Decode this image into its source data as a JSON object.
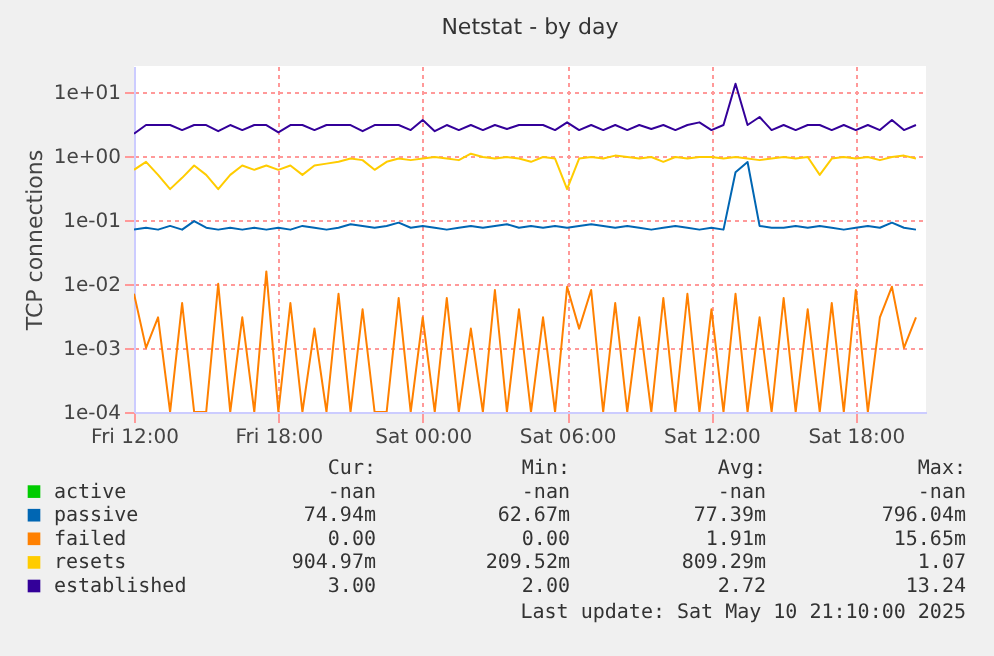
{
  "chart_data": {
    "type": "line",
    "title": "Netstat - by day",
    "ylabel": "TCP connections",
    "log": "y",
    "grid": true,
    "legend": "bottom",
    "xlim": [
      "2025-05-09T12:00",
      "2025-05-10T20:55"
    ],
    "xticks": [
      {
        "value": "2025-05-09T12:00",
        "label": "Fri 12:00"
      },
      {
        "value": "2025-05-09T18:00",
        "label": "Fri 18:00"
      },
      {
        "value": "2025-05-10T00:00",
        "label": "Sat 00:00"
      },
      {
        "value": "2025-05-10T06:00",
        "label": "Sat 06:00"
      },
      {
        "value": "2025-05-10T12:00",
        "label": "Sat 12:00"
      },
      {
        "value": "2025-05-10T18:00",
        "label": "Sat 18:00"
      }
    ],
    "ylim": [
      0.0001,
      25
    ],
    "yticks": [
      {
        "value": 0.0001,
        "label": "1e-04"
      },
      {
        "value": 0.001,
        "label": "1e-03"
      },
      {
        "value": 0.01,
        "label": "1e-02"
      },
      {
        "value": 0.1,
        "label": "1e-01"
      },
      {
        "value": 1,
        "label": "1e+00"
      },
      {
        "value": 10,
        "label": "1e+01"
      }
    ],
    "x": [
      "2025-05-09T12:00",
      "2025-05-09T12:30",
      "2025-05-09T13:00",
      "2025-05-09T13:30",
      "2025-05-09T14:00",
      "2025-05-09T14:30",
      "2025-05-09T15:00",
      "2025-05-09T15:30",
      "2025-05-09T16:00",
      "2025-05-09T16:30",
      "2025-05-09T17:00",
      "2025-05-09T17:30",
      "2025-05-09T18:00",
      "2025-05-09T18:30",
      "2025-05-09T19:00",
      "2025-05-09T19:30",
      "2025-05-09T20:00",
      "2025-05-09T20:30",
      "2025-05-09T21:00",
      "2025-05-09T21:30",
      "2025-05-09T22:00",
      "2025-05-09T22:30",
      "2025-05-09T23:00",
      "2025-05-09T23:30",
      "2025-05-10T00:00",
      "2025-05-10T00:30",
      "2025-05-10T01:00",
      "2025-05-10T01:30",
      "2025-05-10T02:00",
      "2025-05-10T02:30",
      "2025-05-10T03:00",
      "2025-05-10T03:30",
      "2025-05-10T04:00",
      "2025-05-10T04:30",
      "2025-05-10T05:00",
      "2025-05-10T05:30",
      "2025-05-10T06:00",
      "2025-05-10T06:30",
      "2025-05-10T07:00",
      "2025-05-10T07:30",
      "2025-05-10T08:00",
      "2025-05-10T08:30",
      "2025-05-10T09:00",
      "2025-05-10T09:30",
      "2025-05-10T10:00",
      "2025-05-10T10:30",
      "2025-05-10T11:00",
      "2025-05-10T11:30",
      "2025-05-10T12:00",
      "2025-05-10T12:30",
      "2025-05-10T13:00",
      "2025-05-10T13:30",
      "2025-05-10T14:00",
      "2025-05-10T14:30",
      "2025-05-10T15:00",
      "2025-05-10T15:30",
      "2025-05-10T16:00",
      "2025-05-10T16:30",
      "2025-05-10T17:00",
      "2025-05-10T17:30",
      "2025-05-10T18:00",
      "2025-05-10T18:30",
      "2025-05-10T19:00",
      "2025-05-10T19:30",
      "2025-05-10T20:00",
      "2025-05-10T20:30"
    ],
    "series": [
      {
        "name": "active",
        "color": "#00cc00",
        "values": [
          null,
          null,
          null,
          null,
          null,
          null,
          null,
          null,
          null,
          null,
          null,
          null,
          null,
          null,
          null,
          null,
          null,
          null,
          null,
          null,
          null,
          null,
          null,
          null,
          null,
          null,
          null,
          null,
          null,
          null,
          null,
          null,
          null,
          null,
          null,
          null,
          null,
          null,
          null,
          null,
          null,
          null,
          null,
          null,
          null,
          null,
          null,
          null,
          null,
          null,
          null,
          null,
          null,
          null,
          null,
          null,
          null,
          null,
          null,
          null,
          null,
          null,
          null,
          null,
          null,
          null
        ]
      },
      {
        "name": "passive",
        "color": "#0066b3",
        "values": [
          0.07,
          0.075,
          0.07,
          0.08,
          0.07,
          0.095,
          0.075,
          0.07,
          0.075,
          0.07,
          0.075,
          0.07,
          0.075,
          0.07,
          0.08,
          0.075,
          0.07,
          0.075,
          0.085,
          0.08,
          0.075,
          0.08,
          0.09,
          0.075,
          0.08,
          0.075,
          0.07,
          0.075,
          0.08,
          0.075,
          0.08,
          0.085,
          0.075,
          0.08,
          0.075,
          0.08,
          0.075,
          0.08,
          0.085,
          0.08,
          0.075,
          0.08,
          0.075,
          0.07,
          0.075,
          0.08,
          0.075,
          0.07,
          0.075,
          0.07,
          0.55,
          0.796,
          0.08,
          0.075,
          0.075,
          0.08,
          0.075,
          0.08,
          0.075,
          0.07,
          0.075,
          0.08,
          0.075,
          0.09,
          0.075,
          0.07
        ]
      },
      {
        "name": "failed",
        "color": "#ff8000",
        "values": [
          0.007,
          0.001,
          0.003,
          0.0001,
          0.005,
          0.0001,
          0.0001,
          0.01,
          0.0001,
          0.003,
          0.0001,
          0.0156,
          0.0001,
          0.005,
          0.0001,
          0.002,
          0.0001,
          0.007,
          0.0001,
          0.004,
          0.0001,
          0.0001,
          0.006,
          0.0001,
          0.003,
          0.0001,
          0.006,
          0.0001,
          0.002,
          0.0001,
          0.008,
          0.0001,
          0.004,
          0.0001,
          0.003,
          0.0001,
          0.009,
          0.002,
          0.008,
          0.0001,
          0.005,
          0.0001,
          0.003,
          0.0001,
          0.006,
          0.0001,
          0.007,
          0.0001,
          0.004,
          0.0001,
          0.007,
          0.0001,
          0.003,
          0.0001,
          0.006,
          0.0001,
          0.004,
          0.0001,
          0.005,
          0.0001,
          0.008,
          0.0001,
          0.003,
          0.009,
          0.001,
          0.003
        ]
      },
      {
        "name": "resets",
        "color": "#ffcc00",
        "values": [
          0.6,
          0.8,
          0.5,
          0.3,
          0.45,
          0.7,
          0.5,
          0.3,
          0.5,
          0.7,
          0.6,
          0.7,
          0.6,
          0.7,
          0.5,
          0.7,
          0.75,
          0.8,
          0.9,
          0.85,
          0.6,
          0.8,
          0.9,
          0.85,
          0.9,
          0.95,
          0.9,
          0.85,
          1.07,
          0.95,
          0.9,
          0.95,
          0.9,
          0.8,
          0.95,
          0.9,
          0.3,
          0.9,
          0.95,
          0.9,
          1.0,
          0.95,
          0.9,
          0.95,
          0.8,
          0.95,
          0.9,
          0.95,
          0.95,
          0.9,
          0.95,
          0.9,
          0.85,
          0.9,
          0.95,
          0.9,
          0.95,
          0.5,
          0.9,
          0.95,
          0.9,
          0.95,
          0.85,
          0.95,
          1.0,
          0.9
        ]
      },
      {
        "name": "established",
        "color": "#330099",
        "values": [
          2.2,
          3,
          3,
          3,
          2.5,
          3,
          3,
          2.4,
          3,
          2.5,
          3,
          3,
          2.3,
          3,
          3,
          2.5,
          3,
          3,
          3,
          2.4,
          3,
          3,
          3,
          2.5,
          3.6,
          2.4,
          3,
          2.5,
          3,
          2.5,
          3,
          2.6,
          3,
          3,
          3,
          2.5,
          3.3,
          2.5,
          3,
          2.5,
          3,
          2.5,
          3,
          2.6,
          3,
          2.5,
          3,
          3.3,
          2.5,
          3,
          13.24,
          3,
          4,
          2.5,
          3,
          2.5,
          3,
          3,
          2.5,
          3,
          2.5,
          3,
          2.5,
          3.6,
          2.5,
          3
        ]
      }
    ],
    "annotations": [
      "Cur:",
      "Min:",
      "Avg:",
      "Max:",
      "-nan",
      "-nan",
      "-nan",
      "-nan",
      "74.94m",
      "62.67m",
      "77.39m",
      "796.04m",
      "0.00",
      "0.00",
      "1.91m",
      "15.65m",
      "904.97m",
      "209.52m",
      "809.29m",
      "1.07",
      "3.00",
      "2.00",
      "2.72",
      "13.24",
      "Last update: Sat May 10 21:10:00 2025"
    ]
  }
}
